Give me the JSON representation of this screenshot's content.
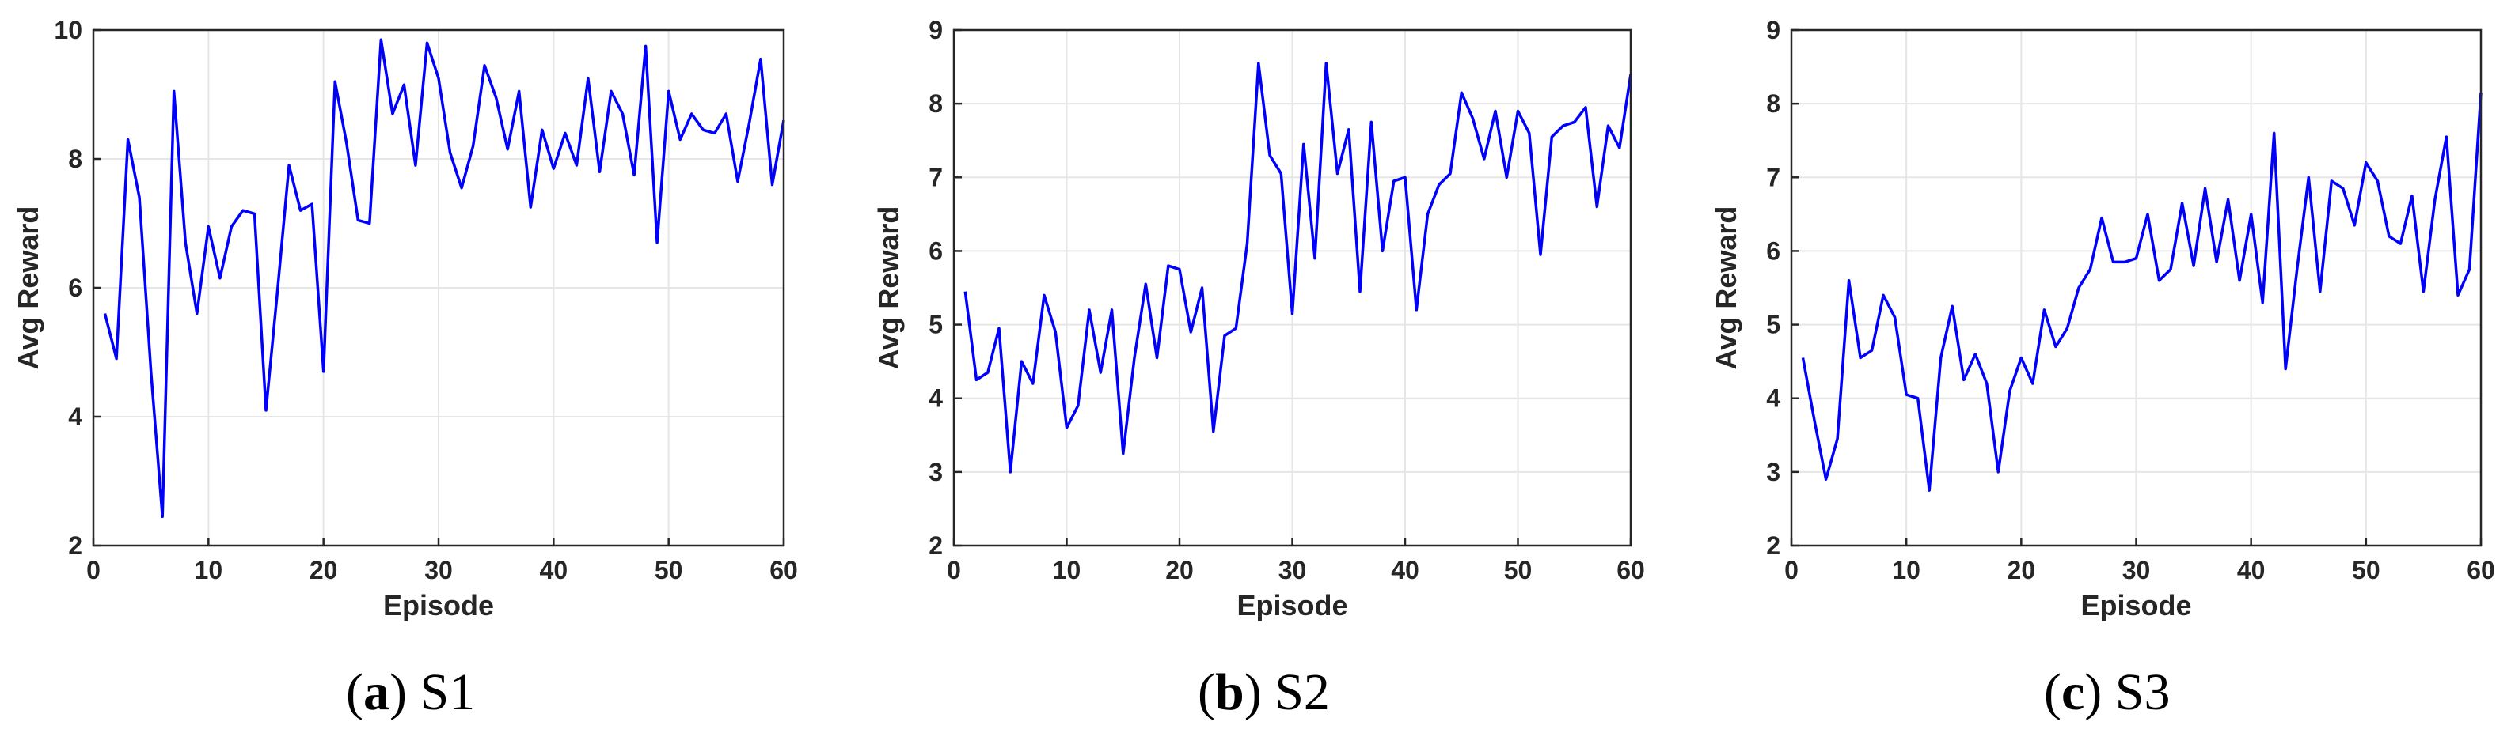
{
  "charts": [
    {
      "caption_letter": "a",
      "caption_name": "S1",
      "chart_data": {
        "type": "line",
        "title": "",
        "xlabel": "Episode",
        "ylabel": "Avg Reward",
        "xlim": [
          0,
          60
        ],
        "ylim": [
          2,
          10
        ],
        "xticks": [
          0,
          10,
          20,
          30,
          40,
          50,
          60
        ],
        "yticks": [
          2,
          4,
          6,
          8,
          10
        ],
        "grid": true,
        "line_color": "#0000ff",
        "x": [
          1,
          2,
          3,
          4,
          5,
          6,
          7,
          8,
          9,
          10,
          11,
          12,
          13,
          14,
          15,
          16,
          17,
          18,
          19,
          20,
          21,
          22,
          23,
          24,
          25,
          26,
          27,
          28,
          29,
          30,
          31,
          32,
          33,
          34,
          35,
          36,
          37,
          38,
          39,
          40,
          41,
          42,
          43,
          44,
          45,
          46,
          47,
          48,
          49,
          50,
          51,
          52,
          53,
          54,
          55,
          56,
          57,
          58,
          59,
          60
        ],
        "series": [
          {
            "values": [
              5.6,
              4.9,
              8.3,
              7.4,
              4.7,
              2.45,
              9.05,
              6.7,
              5.6,
              6.95,
              6.15,
              6.95,
              7.2,
              7.15,
              4.1,
              5.95,
              7.9,
              7.2,
              7.3,
              4.7,
              9.2,
              8.25,
              7.05,
              7.0,
              9.85,
              8.7,
              9.15,
              7.9,
              9.8,
              9.25,
              8.1,
              7.55,
              8.2,
              9.45,
              8.95,
              8.15,
              9.05,
              7.25,
              8.45,
              7.85,
              8.4,
              7.9,
              9.25,
              7.8,
              9.05,
              8.7,
              7.75,
              9.75,
              6.7,
              9.05,
              8.3,
              8.7,
              8.45,
              8.4,
              8.7,
              7.65,
              8.55,
              9.55,
              7.6,
              8.6
            ]
          }
        ]
      }
    },
    {
      "caption_letter": "b",
      "caption_name": "S2",
      "chart_data": {
        "type": "line",
        "title": "",
        "xlabel": "Episode",
        "ylabel": "Avg Reward",
        "xlim": [
          0,
          60
        ],
        "ylim": [
          2,
          9
        ],
        "xticks": [
          0,
          10,
          20,
          30,
          40,
          50,
          60
        ],
        "yticks": [
          2,
          3,
          4,
          5,
          6,
          7,
          8,
          9
        ],
        "grid": true,
        "line_color": "#0000ff",
        "x": [
          1,
          2,
          3,
          4,
          5,
          6,
          7,
          8,
          9,
          10,
          11,
          12,
          13,
          14,
          15,
          16,
          17,
          18,
          19,
          20,
          21,
          22,
          23,
          24,
          25,
          26,
          27,
          28,
          29,
          30,
          31,
          32,
          33,
          34,
          35,
          36,
          37,
          38,
          39,
          40,
          41,
          42,
          43,
          44,
          45,
          46,
          47,
          48,
          49,
          50,
          51,
          52,
          53,
          54,
          55,
          56,
          57,
          58,
          59,
          60
        ],
        "series": [
          {
            "values": [
              5.45,
              4.25,
              4.35,
              4.95,
              3.0,
              4.5,
              4.2,
              5.4,
              4.9,
              3.6,
              3.9,
              5.2,
              4.35,
              5.2,
              3.25,
              4.55,
              5.55,
              4.55,
              5.8,
              5.75,
              4.9,
              5.5,
              3.55,
              4.85,
              4.95,
              6.1,
              8.55,
              7.3,
              7.05,
              5.15,
              7.45,
              5.9,
              8.55,
              7.05,
              7.65,
              5.45,
              7.75,
              6.0,
              6.95,
              7.0,
              5.2,
              6.5,
              6.9,
              7.05,
              8.15,
              7.8,
              7.25,
              7.9,
              7.0,
              7.9,
              7.6,
              5.95,
              7.55,
              7.7,
              7.75,
              7.95,
              6.6,
              7.7,
              7.4,
              8.4
            ]
          }
        ]
      }
    },
    {
      "caption_letter": "c",
      "caption_name": "S3",
      "chart_data": {
        "type": "line",
        "title": "",
        "xlabel": "Episode",
        "ylabel": "Avg Reward",
        "xlim": [
          0,
          60
        ],
        "ylim": [
          2,
          9
        ],
        "xticks": [
          0,
          10,
          20,
          30,
          40,
          50,
          60
        ],
        "yticks": [
          2,
          3,
          4,
          5,
          6,
          7,
          8,
          9
        ],
        "grid": true,
        "line_color": "#0000ff",
        "x": [
          1,
          2,
          3,
          4,
          5,
          6,
          7,
          8,
          9,
          10,
          11,
          12,
          13,
          14,
          15,
          16,
          17,
          18,
          19,
          20,
          21,
          22,
          23,
          24,
          25,
          26,
          27,
          28,
          29,
          30,
          31,
          32,
          33,
          34,
          35,
          36,
          37,
          38,
          39,
          40,
          41,
          42,
          43,
          44,
          45,
          46,
          47,
          48,
          49,
          50,
          51,
          52,
          53,
          54,
          55,
          56,
          57,
          58,
          59,
          60
        ],
        "series": [
          {
            "values": [
              4.55,
              3.7,
              2.9,
              3.45,
              5.6,
              4.55,
              4.65,
              5.4,
              5.1,
              4.05,
              4.0,
              2.75,
              4.55,
              5.25,
              4.25,
              4.6,
              4.2,
              3.0,
              4.1,
              4.55,
              4.2,
              5.2,
              4.7,
              4.95,
              5.5,
              5.75,
              6.45,
              5.85,
              5.85,
              5.9,
              6.5,
              5.6,
              5.75,
              6.65,
              5.8,
              6.85,
              5.85,
              6.7,
              5.6,
              6.5,
              5.3,
              7.6,
              4.4,
              5.75,
              7.0,
              5.45,
              6.95,
              6.85,
              6.35,
              7.2,
              6.95,
              6.2,
              6.1,
              6.75,
              5.45,
              6.7,
              7.55,
              5.4,
              5.75,
              8.15
            ]
          }
        ]
      }
    }
  ]
}
